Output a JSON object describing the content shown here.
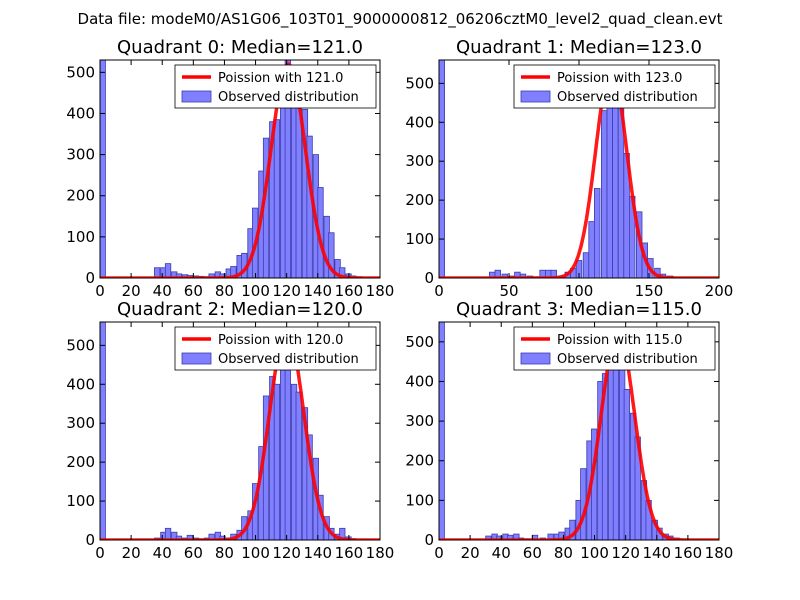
{
  "suptitle": "Data file: modeM0/AS1G06_103T01_9000000812_06206cztM0_level2_quad_clean.evt",
  "colors": {
    "bar_fill": "#7f7fff",
    "bar_edge": "#3d3dab",
    "curve": "#ff0000",
    "axis": "#000000"
  },
  "chart_data": [
    {
      "type": "bar",
      "title": "Quadrant 0: Median=121.0",
      "xlim": [
        0,
        180
      ],
      "ylim": [
        0,
        530
      ],
      "xticks": [
        0,
        20,
        40,
        60,
        80,
        100,
        120,
        140,
        160,
        180
      ],
      "yticks": [
        0,
        100,
        200,
        300,
        400,
        500
      ],
      "bin_width": 3.5,
      "bars": [
        [
          0,
          530
        ],
        [
          35,
          25
        ],
        [
          39,
          25
        ],
        [
          42,
          35
        ],
        [
          46,
          15
        ],
        [
          49,
          10
        ],
        [
          53,
          8
        ],
        [
          56,
          6
        ],
        [
          60,
          5
        ],
        [
          63,
          4
        ],
        [
          67,
          3
        ],
        [
          70,
          10
        ],
        [
          74,
          15
        ],
        [
          77,
          10
        ],
        [
          81,
          22
        ],
        [
          84,
          28
        ],
        [
          88,
          55
        ],
        [
          91,
          60
        ],
        [
          95,
          120
        ],
        [
          98,
          170
        ],
        [
          102,
          260
        ],
        [
          105,
          340
        ],
        [
          109,
          380
        ],
        [
          112,
          385
        ],
        [
          116,
          440
        ],
        [
          119,
          530
        ],
        [
          123,
          500
        ],
        [
          126,
          450
        ],
        [
          130,
          410
        ],
        [
          133,
          345
        ],
        [
          137,
          300
        ],
        [
          140,
          220
        ],
        [
          144,
          150
        ],
        [
          147,
          110
        ],
        [
          151,
          45
        ],
        [
          154,
          25
        ],
        [
          158,
          10
        ],
        [
          161,
          5
        ],
        [
          165,
          3
        ]
      ],
      "curve": {
        "mean": 121.0,
        "peak": 520,
        "sigma": 11.0
      },
      "legend": [
        "Poission with 121.0",
        "Observed distribution"
      ]
    },
    {
      "type": "bar",
      "title": "Quadrant 1: Median=123.0",
      "xlim": [
        0,
        200
      ],
      "ylim": [
        0,
        560
      ],
      "xticks": [
        0,
        50,
        100,
        150,
        200
      ],
      "yticks": [
        0,
        100,
        200,
        300,
        400,
        500
      ],
      "bin_width": 4.0,
      "bars": [
        [
          0,
          560
        ],
        [
          36,
          15
        ],
        [
          40,
          20
        ],
        [
          45,
          10
        ],
        [
          50,
          5
        ],
        [
          54,
          15
        ],
        [
          58,
          10
        ],
        [
          63,
          5
        ],
        [
          67,
          3
        ],
        [
          72,
          20
        ],
        [
          76,
          20
        ],
        [
          80,
          20
        ],
        [
          85,
          5
        ],
        [
          90,
          15
        ],
        [
          94,
          25
        ],
        [
          98,
          45
        ],
        [
          103,
          65
        ],
        [
          107,
          145
        ],
        [
          111,
          230
        ],
        [
          116,
          430
        ],
        [
          120,
          470
        ],
        [
          124,
          520
        ],
        [
          128,
          480
        ],
        [
          132,
          320
        ],
        [
          136,
          210
        ],
        [
          141,
          170
        ],
        [
          145,
          90
        ],
        [
          149,
          50
        ],
        [
          154,
          25
        ],
        [
          158,
          10
        ],
        [
          163,
          5
        ]
      ],
      "curve": {
        "mean": 123.0,
        "peak": 540,
        "sigma": 11.1
      },
      "legend": [
        "Poission with 123.0",
        "Observed distribution"
      ]
    },
    {
      "type": "bar",
      "title": "Quadrant 2: Median=120.0",
      "xlim": [
        0,
        180
      ],
      "ylim": [
        0,
        560
      ],
      "xticks": [
        0,
        20,
        40,
        60,
        80,
        100,
        120,
        140,
        160,
        180
      ],
      "yticks": [
        0,
        100,
        200,
        300,
        400,
        500
      ],
      "bin_width": 3.5,
      "bars": [
        [
          0,
          560
        ],
        [
          35,
          5
        ],
        [
          39,
          20
        ],
        [
          42,
          30
        ],
        [
          46,
          20
        ],
        [
          49,
          10
        ],
        [
          53,
          5
        ],
        [
          56,
          12
        ],
        [
          60,
          5
        ],
        [
          63,
          3
        ],
        [
          67,
          5
        ],
        [
          70,
          15
        ],
        [
          74,
          20
        ],
        [
          77,
          10
        ],
        [
          81,
          5
        ],
        [
          84,
          15
        ],
        [
          88,
          25
        ],
        [
          91,
          60
        ],
        [
          95,
          75
        ],
        [
          98,
          145
        ],
        [
          102,
          240
        ],
        [
          105,
          370
        ],
        [
          109,
          420
        ],
        [
          112,
          400
        ],
        [
          116,
          460
        ],
        [
          119,
          520
        ],
        [
          123,
          400
        ],
        [
          126,
          380
        ],
        [
          130,
          340
        ],
        [
          133,
          270
        ],
        [
          137,
          210
        ],
        [
          140,
          115
        ],
        [
          144,
          60
        ],
        [
          147,
          30
        ],
        [
          151,
          15
        ],
        [
          154,
          30
        ],
        [
          158,
          8
        ],
        [
          161,
          3
        ]
      ],
      "curve": {
        "mean": 120.0,
        "peak": 540,
        "sigma": 11.0
      },
      "legend": [
        "Poission with 120.0",
        "Observed distribution"
      ]
    },
    {
      "type": "bar",
      "title": "Quadrant 3: Median=115.0",
      "xlim": [
        0,
        180
      ],
      "ylim": [
        0,
        550
      ],
      "xticks": [
        0,
        20,
        40,
        60,
        80,
        100,
        120,
        140,
        160,
        180
      ],
      "yticks": [
        0,
        100,
        200,
        300,
        400,
        500
      ],
      "bin_width": 3.5,
      "bars": [
        [
          0,
          550
        ],
        [
          30,
          10
        ],
        [
          34,
          15
        ],
        [
          37,
          10
        ],
        [
          41,
          15
        ],
        [
          44,
          12
        ],
        [
          48,
          15
        ],
        [
          51,
          5
        ],
        [
          55,
          3
        ],
        [
          60,
          12
        ],
        [
          65,
          5
        ],
        [
          70,
          15
        ],
        [
          74,
          15
        ],
        [
          77,
          20
        ],
        [
          81,
          30
        ],
        [
          84,
          50
        ],
        [
          88,
          100
        ],
        [
          91,
          180
        ],
        [
          95,
          250
        ],
        [
          98,
          280
        ],
        [
          102,
          400
        ],
        [
          105,
          420
        ],
        [
          109,
          520
        ],
        [
          112,
          500
        ],
        [
          116,
          440
        ],
        [
          119,
          380
        ],
        [
          123,
          320
        ],
        [
          126,
          260
        ],
        [
          130,
          150
        ],
        [
          133,
          100
        ],
        [
          137,
          50
        ],
        [
          140,
          30
        ],
        [
          144,
          15
        ],
        [
          147,
          10
        ],
        [
          151,
          5
        ]
      ],
      "curve": {
        "mean": 115.0,
        "peak": 525,
        "sigma": 10.7
      },
      "legend": [
        "Poission with 115.0",
        "Observed distribution"
      ]
    }
  ]
}
